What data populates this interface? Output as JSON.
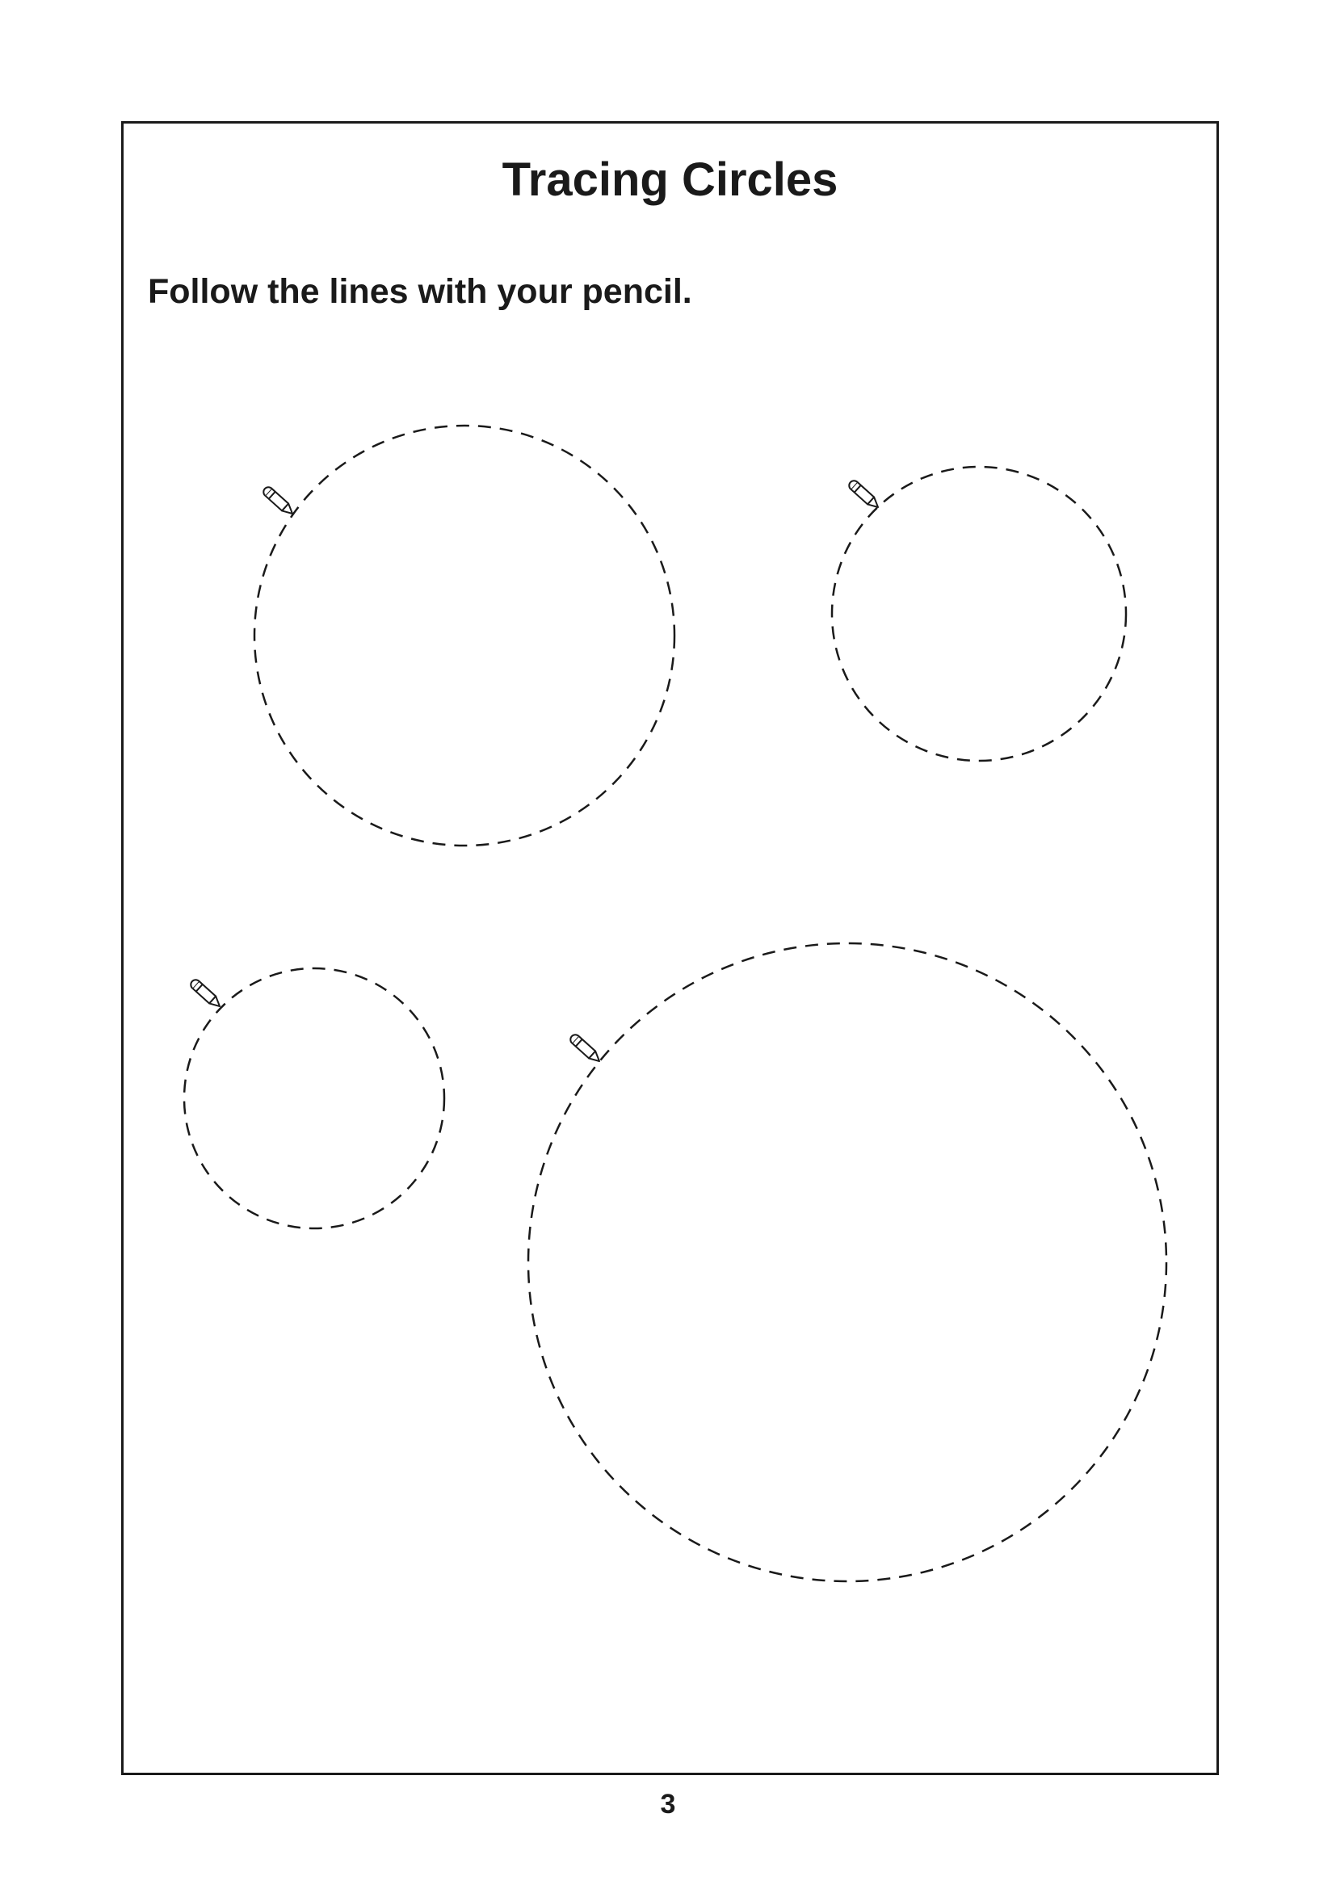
{
  "worksheet": {
    "title": "Tracing Circles",
    "instruction": "Follow the lines with your pencil.",
    "page_number": "3"
  },
  "icons": {
    "start_marker": "pencil-icon"
  },
  "colors": {
    "ink": "#1a1a1a",
    "paper": "#ffffff"
  },
  "circles": [
    {
      "id": "top-left"
    },
    {
      "id": "top-right"
    },
    {
      "id": "bottom-left"
    },
    {
      "id": "bottom-right"
    }
  ]
}
